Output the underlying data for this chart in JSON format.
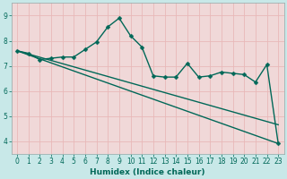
{
  "xlabel": "Humidex (Indice chaleur)",
  "bg_outer": "#c8e8e8",
  "bg_plot": "#f0d8d8",
  "grid_color": "#e8b8b8",
  "line_color": "#006858",
  "spine_color": "#a0b0b0",
  "tick_color": "#006858",
  "label_color": "#006858",
  "xlim_min": -0.5,
  "xlim_max": 23.5,
  "ylim_min": 3.5,
  "ylim_max": 9.5,
  "xticks": [
    0,
    1,
    2,
    3,
    4,
    5,
    6,
    7,
    8,
    9,
    10,
    11,
    12,
    13,
    14,
    15,
    16,
    17,
    18,
    19,
    20,
    21,
    22,
    23
  ],
  "yticks": [
    4,
    5,
    6,
    7,
    8,
    9
  ],
  "line1_x": [
    0,
    1,
    2,
    3,
    4,
    5,
    6,
    7,
    8,
    9,
    10,
    11,
    12,
    13,
    14,
    15,
    16,
    17,
    18,
    19,
    20,
    21,
    22,
    23
  ],
  "line1_y": [
    7.6,
    7.5,
    7.25,
    7.3,
    7.35,
    7.35,
    7.65,
    7.95,
    8.55,
    8.9,
    8.2,
    7.75,
    6.6,
    6.55,
    6.55,
    7.1,
    6.55,
    6.6,
    6.75,
    6.7,
    6.65,
    6.35,
    7.05,
    3.9
  ],
  "line2_x": [
    0,
    23
  ],
  "line2_y": [
    7.6,
    4.65
  ],
  "line3_x": [
    0,
    23
  ],
  "line3_y": [
    7.6,
    3.9
  ],
  "marker_size": 2.5,
  "line_width": 1.0,
  "tick_fontsize": 5.5,
  "xlabel_fontsize": 6.5
}
